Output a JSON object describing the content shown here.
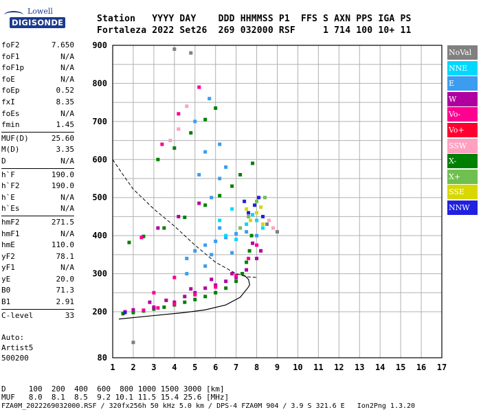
{
  "logo": {
    "line1": "Lowell",
    "line2": "DIGISONDE"
  },
  "header": {
    "labels": [
      "Station",
      "YYYY",
      "DAY",
      "DDD",
      "HHMMSS",
      "P1",
      "FFS",
      "S",
      "AXN",
      "PPS",
      "IGA",
      "PS"
    ],
    "values": [
      "Fortaleza",
      "2022",
      "Set26",
      "269",
      "032000",
      "RSF",
      "",
      "1",
      "714",
      "100",
      "10+",
      "11"
    ]
  },
  "params_groups": [
    [
      [
        "foF2",
        "7.650"
      ],
      [
        "foF1",
        "N/A"
      ],
      [
        "foF1p",
        "N/A"
      ],
      [
        "foE",
        "N/A"
      ],
      [
        "foEp",
        "0.52"
      ],
      [
        "fxI",
        "8.35"
      ],
      [
        "foEs",
        "N/A"
      ],
      [
        "fmin",
        "1.45"
      ]
    ],
    [
      [
        "MUF(D)",
        "25.60"
      ],
      [
        "M(D)",
        "3.35"
      ],
      [
        "D",
        "N/A"
      ]
    ],
    [
      [
        "h`F",
        "190.0"
      ],
      [
        "h`F2",
        "190.0"
      ],
      [
        "h`E",
        "N/A"
      ],
      [
        "h`Es",
        "N/A"
      ]
    ],
    [
      [
        "hmF2",
        "271.5"
      ],
      [
        "hmF1",
        "N/A"
      ],
      [
        "hmE",
        "110.0"
      ],
      [
        "yF2",
        "78.1"
      ],
      [
        "yF1",
        "N/A"
      ],
      [
        "yE",
        "20.0"
      ],
      [
        "B0",
        "71.3"
      ],
      [
        "B1",
        "2.91"
      ]
    ],
    [
      [
        "C-level",
        "33"
      ]
    ]
  ],
  "auto": [
    "Auto:",
    "Artist5",
    "500200"
  ],
  "legend": [
    {
      "label": "NoVal",
      "color": "#808080"
    },
    {
      "label": "NNE",
      "color": "#00d8ff"
    },
    {
      "label": "E",
      "color": "#3c9cf0"
    },
    {
      "label": "W",
      "color": "#b000a0"
    },
    {
      "label": "Vo-",
      "color": "#ff0090"
    },
    {
      "label": "Vo+",
      "color": "#ff0030"
    },
    {
      "label": "SSW",
      "color": "#ffa0c0"
    },
    {
      "label": "X-",
      "color": "#008000"
    },
    {
      "label": "X+",
      "color": "#70c050"
    },
    {
      "label": "SSE",
      "color": "#d8d800"
    },
    {
      "label": "NNW",
      "color": "#2020e0"
    }
  ],
  "footer": {
    "line1": "D     100  200  400  600  800 1000 1500 3000 [km]",
    "line2": "MUF   8.0  8.1  8.5  9.2 10.1 11.5 15.4 25.6 [MHz]",
    "line3": "FZA0M_2022269032000.RSF / 320fx256h 50 kHz 5.0 km / DPS-4 FZA0M 904 / 3.9 S 321.6 E   Ion2Png 1.3.20"
  },
  "chart_data": {
    "type": "scatter",
    "xlim": [
      1,
      17
    ],
    "ylim": [
      80,
      900
    ],
    "x_ticks": [
      1,
      2,
      3,
      4,
      5,
      6,
      7,
      8,
      9,
      10,
      11,
      12,
      13,
      14,
      15,
      16,
      17
    ],
    "y_ticks": [
      80,
      200,
      300,
      400,
      500,
      600,
      700,
      800,
      900
    ],
    "grid": true,
    "series": [
      {
        "name": "X-",
        "color": "#008000",
        "points": [
          [
            1.5,
            195
          ],
          [
            2,
            198
          ],
          [
            2.5,
            202
          ],
          [
            3,
            207
          ],
          [
            3.5,
            212
          ],
          [
            4,
            218
          ],
          [
            4.5,
            225
          ],
          [
            5,
            232
          ],
          [
            5.5,
            240
          ],
          [
            6,
            250
          ],
          [
            6.5,
            262
          ],
          [
            7,
            280
          ],
          [
            7.3,
            300
          ],
          [
            7.5,
            330
          ],
          [
            7.65,
            360
          ],
          [
            7.75,
            400
          ],
          [
            1.8,
            382
          ],
          [
            2.5,
            398
          ],
          [
            3.5,
            420
          ],
          [
            4.5,
            448
          ],
          [
            5.5,
            480
          ],
          [
            6.2,
            505
          ],
          [
            6.8,
            530
          ],
          [
            7.2,
            560
          ],
          [
            7.8,
            590
          ],
          [
            3.2,
            600
          ],
          [
            4,
            630
          ],
          [
            4.8,
            670
          ],
          [
            5.5,
            705
          ],
          [
            6,
            735
          ]
        ]
      },
      {
        "name": "W",
        "color": "#b000a0",
        "points": [
          [
            2,
            205
          ],
          [
            3,
            212
          ],
          [
            4,
            225
          ],
          [
            4.5,
            240
          ],
          [
            5,
            250
          ],
          [
            5.5,
            262
          ],
          [
            6,
            270
          ],
          [
            6.5,
            280
          ],
          [
            7,
            290
          ],
          [
            7.5,
            310
          ],
          [
            8,
            340
          ],
          [
            8.2,
            360
          ],
          [
            7.8,
            380
          ],
          [
            2.8,
            225
          ],
          [
            3.6,
            230
          ],
          [
            4.8,
            260
          ],
          [
            5.8,
            285
          ],
          [
            6.8,
            300
          ],
          [
            3.2,
            420
          ],
          [
            4.2,
            450
          ],
          [
            5.2,
            485
          ]
        ]
      },
      {
        "name": "Vo-",
        "color": "#ff0090",
        "points": [
          [
            1.6,
            200
          ],
          [
            2.5,
            204
          ],
          [
            3.2,
            210
          ],
          [
            4,
            220
          ],
          [
            5,
            245
          ],
          [
            6,
            265
          ],
          [
            7,
            295
          ],
          [
            7.6,
            340
          ],
          [
            8,
            375
          ],
          [
            3,
            250
          ],
          [
            4,
            290
          ],
          [
            2.4,
            395
          ],
          [
            3.4,
            640
          ],
          [
            4.2,
            720
          ],
          [
            5.2,
            790
          ]
        ]
      },
      {
        "name": "E",
        "color": "#3c9cf0",
        "points": [
          [
            4.6,
            340
          ],
          [
            5,
            360
          ],
          [
            5.5,
            375
          ],
          [
            6,
            385
          ],
          [
            6.5,
            395
          ],
          [
            7,
            405
          ],
          [
            7.5,
            410
          ],
          [
            8,
            400
          ],
          [
            6.2,
            420
          ],
          [
            5.8,
            350
          ],
          [
            6.8,
            355
          ],
          [
            4.6,
            300
          ],
          [
            5.5,
            320
          ],
          [
            5.8,
            500
          ],
          [
            6.2,
            550
          ],
          [
            6.5,
            580
          ],
          [
            5.5,
            620
          ],
          [
            6.2,
            640
          ],
          [
            5.2,
            560
          ],
          [
            5,
            700
          ],
          [
            5.7,
            760
          ]
        ]
      },
      {
        "name": "NNE",
        "color": "#00d8ff",
        "points": [
          [
            6.5,
            400
          ],
          [
            7,
            390
          ],
          [
            7.5,
            430
          ],
          [
            8,
            440
          ],
          [
            8.3,
            420
          ],
          [
            7.8,
            455
          ],
          [
            6.8,
            470
          ],
          [
            6.2,
            440
          ]
        ]
      },
      {
        "name": "NNW",
        "color": "#2020e0",
        "points": [
          [
            7.6,
            460
          ],
          [
            7.9,
            480
          ],
          [
            8.1,
            500
          ],
          [
            8.3,
            450
          ],
          [
            7.4,
            490
          ],
          [
            1.6,
            198
          ]
        ]
      },
      {
        "name": "SSE",
        "color": "#d8d800",
        "points": [
          [
            7.7,
            440
          ],
          [
            8,
            460
          ],
          [
            8.2,
            475
          ],
          [
            7.5,
            470
          ],
          [
            8.3,
            430
          ]
        ]
      },
      {
        "name": "X+",
        "color": "#70c050",
        "points": [
          [
            7.6,
            450
          ],
          [
            8,
            490
          ],
          [
            8.4,
            500
          ],
          [
            7.2,
            420
          ]
        ]
      },
      {
        "name": "SSW",
        "color": "#ffa0c0",
        "points": [
          [
            8.8,
            420
          ],
          [
            8.6,
            440
          ],
          [
            4.2,
            680
          ],
          [
            4.6,
            740
          ],
          [
            3.8,
            650
          ]
        ]
      },
      {
        "name": "NoVal",
        "color": "#808080",
        "points": [
          [
            2,
            120
          ],
          [
            8.5,
            430
          ],
          [
            9,
            410
          ],
          [
            4.8,
            880
          ],
          [
            4,
            890
          ]
        ]
      }
    ],
    "profile_curve": [
      [
        1.3,
        181
      ],
      [
        3,
        190
      ],
      [
        4.5,
        198
      ],
      [
        5.5,
        205
      ],
      [
        6.5,
        218
      ],
      [
        7.2,
        238
      ],
      [
        7.6,
        265
      ],
      [
        7.66,
        271.5
      ],
      [
        7.6,
        285
      ],
      [
        7.4,
        296
      ]
    ],
    "muf_curve": [
      [
        1,
        600
      ],
      [
        1.5,
        560
      ],
      [
        2,
        522
      ],
      [
        3,
        470
      ],
      [
        4,
        425
      ],
      [
        5,
        375
      ],
      [
        6,
        330
      ],
      [
        7,
        300
      ],
      [
        7.5,
        292
      ],
      [
        8,
        290
      ]
    ]
  }
}
